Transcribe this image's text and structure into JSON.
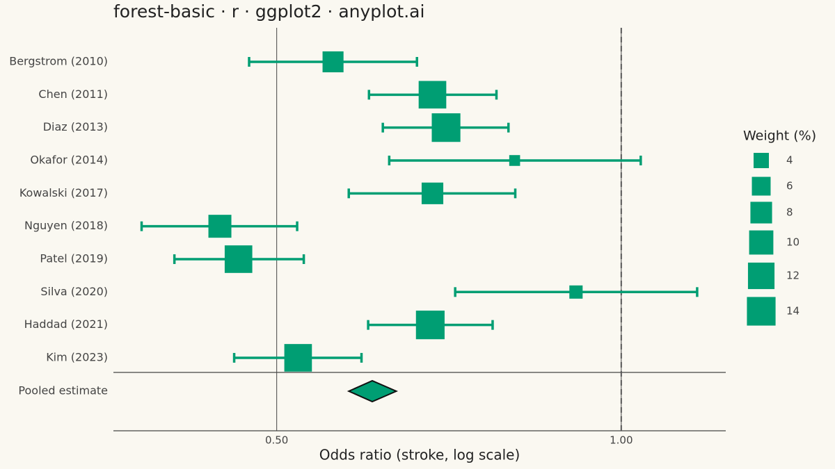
{
  "chart_data": {
    "type": "forest",
    "title": "forest-basic · r · ggplot2 · anyplot.ai",
    "x_label": "Odds ratio (stroke, log scale)",
    "categories": [
      "Bergstrom (2010)",
      "Chen (2011)",
      "Diaz (2013)",
      "Okafor (2014)",
      "Kowalski (2017)",
      "Nguyen (2018)",
      "Patel (2019)",
      "Silva (2020)",
      "Haddad (2021)",
      "Kim (2023)"
    ],
    "values": [
      0.56,
      0.684,
      0.703,
      0.807,
      0.684,
      0.446,
      0.463,
      0.913,
      0.681,
      0.522
    ],
    "lower": [
      0.473,
      0.602,
      0.619,
      0.627,
      0.578,
      0.381,
      0.407,
      0.716,
      0.601,
      0.459
    ],
    "upper": [
      0.663,
      0.778,
      0.797,
      1.04,
      0.808,
      0.521,
      0.528,
      1.165,
      0.772,
      0.593
    ],
    "weights": [
      7.5,
      13,
      14,
      2,
      8,
      9,
      13,
      3,
      14,
      13
    ],
    "pooled": {
      "label": "Pooled estimate",
      "value": 0.606,
      "lower": 0.578,
      "upper": 0.636
    },
    "color": "#009E73",
    "xlim": [
      0.36,
      1.234
    ],
    "xticks": [
      {
        "value": 0.5,
        "label": "0.50"
      },
      {
        "value": 1,
        "label": "1.00"
      }
    ],
    "log_x": true,
    "grid": true,
    "null_line": 1,
    "size_legend": {
      "title": "Weight (%)",
      "values": [
        4,
        6,
        8,
        10,
        12,
        14
      ]
    }
  }
}
